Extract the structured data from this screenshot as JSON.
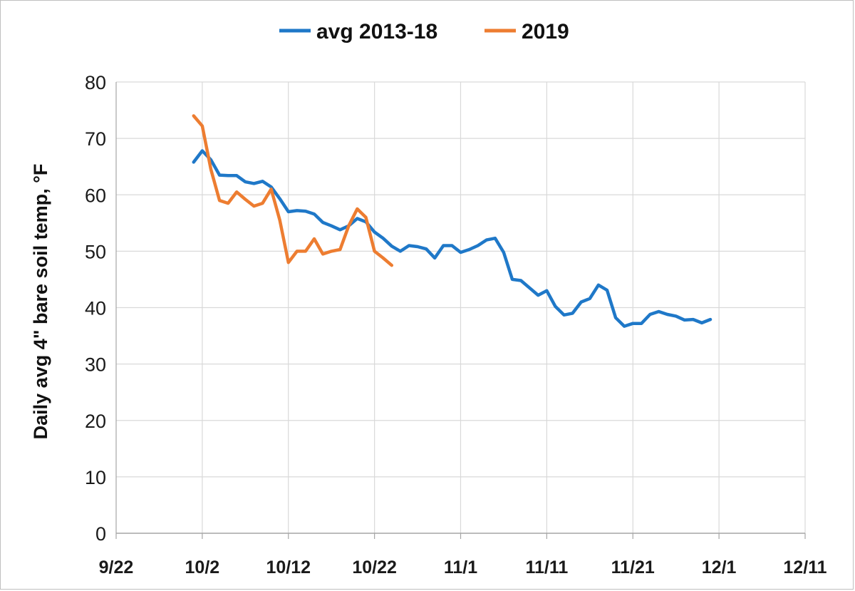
{
  "chart_data": {
    "type": "line",
    "title": "",
    "xlabel": "",
    "ylabel": "Daily avg 4\" bare soil temp, °F",
    "x_ticks": [
      "9/22",
      "10/2",
      "10/12",
      "10/22",
      "11/1",
      "11/11",
      "11/21",
      "12/1",
      "12/11"
    ],
    "y_ticks": [
      "0",
      "10",
      "20",
      "30",
      "40",
      "50",
      "60",
      "70",
      "80"
    ],
    "ylim": [
      0,
      80
    ],
    "xlim": [
      "9/22",
      "12/11"
    ],
    "grid": "vertical and horizontal",
    "legend_position": "top",
    "series": [
      {
        "name": "avg 2013-18",
        "color": "#1f78c8",
        "x": [
          "10/1",
          "10/2",
          "10/3",
          "10/4",
          "10/5",
          "10/6",
          "10/7",
          "10/8",
          "10/9",
          "10/10",
          "10/11",
          "10/12",
          "10/13",
          "10/14",
          "10/15",
          "10/16",
          "10/17",
          "10/18",
          "10/19",
          "10/20",
          "10/21",
          "10/22",
          "10/23",
          "10/24",
          "10/25",
          "10/26",
          "10/27",
          "10/28",
          "10/29",
          "10/30",
          "10/31",
          "11/1",
          "11/2",
          "11/3",
          "11/4",
          "11/5",
          "11/6",
          "11/7",
          "11/8",
          "11/9",
          "11/10",
          "11/11",
          "11/12",
          "11/13",
          "11/14",
          "11/15",
          "11/16",
          "11/17",
          "11/18",
          "11/19",
          "11/20",
          "11/21",
          "11/22",
          "11/23",
          "11/24",
          "11/25",
          "11/26",
          "11/27",
          "11/28",
          "11/29",
          "11/30"
        ],
        "values": [
          65.8,
          67.8,
          66.2,
          63.5,
          63.4,
          63.4,
          62.3,
          62.0,
          62.4,
          61.4,
          59.3,
          57.0,
          57.2,
          57.1,
          56.6,
          55.1,
          54.5,
          53.8,
          54.5,
          55.8,
          55.2,
          53.4,
          52.3,
          50.9,
          50.0,
          51.0,
          50.8,
          50.4,
          48.8,
          51.0,
          51.0,
          49.8,
          50.3,
          51.0,
          52.0,
          52.3,
          49.8,
          45.0,
          44.8,
          43.5,
          42.2,
          43.0,
          40.2,
          38.7,
          39.0,
          41.0,
          41.6,
          44.0,
          43.1,
          38.2,
          36.7,
          37.2,
          37.2,
          38.8,
          39.3,
          38.8,
          38.5,
          37.8,
          37.9,
          37.3,
          37.9
        ]
      },
      {
        "name": "2019",
        "color": "#ed7d31",
        "x": [
          "10/1",
          "10/2",
          "10/3",
          "10/4",
          "10/5",
          "10/6",
          "10/7",
          "10/8",
          "10/9",
          "10/10",
          "10/11",
          "10/12",
          "10/13",
          "10/14",
          "10/15",
          "10/16",
          "10/17",
          "10/18",
          "10/19",
          "10/20",
          "10/21",
          "10/22",
          "10/23",
          "10/24"
        ],
        "values": [
          74.0,
          72.2,
          64.5,
          59.0,
          58.5,
          60.5,
          59.2,
          58.0,
          58.5,
          61.0,
          55.5,
          48.0,
          50.0,
          50.0,
          52.2,
          49.5,
          50.0,
          50.3,
          54.5,
          57.5,
          56.0,
          50.0,
          48.8,
          47.5
        ]
      }
    ]
  }
}
